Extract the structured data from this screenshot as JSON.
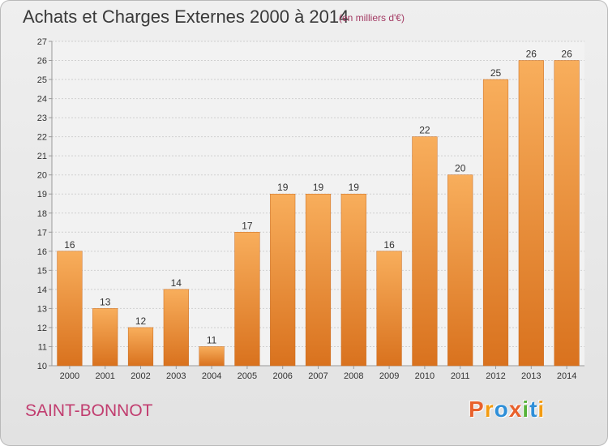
{
  "header": {
    "title": "Achats et Charges Externes 2000 à 2014",
    "subtitle": "(en milliers d'€)"
  },
  "footer": {
    "place": "SAINT-BONNOT",
    "logo": "Proxiti",
    "logo_colors": [
      "#e8612c",
      "#f39c12",
      "#2f8fd8",
      "#e8612c",
      "#57b33a",
      "#2f8fd8",
      "#f39c12"
    ]
  },
  "colors": {
    "bar": "#f0923a",
    "bar_light": "#f8ae5c",
    "bar_dark": "#d9721e",
    "grid": "#cfcfcf",
    "axis": "#9a9a9a",
    "label": "#333333"
  },
  "chart_data": {
    "type": "bar",
    "categories": [
      "2000",
      "2001",
      "2002",
      "2003",
      "2004",
      "2005",
      "2006",
      "2007",
      "2008",
      "2009",
      "2010",
      "2011",
      "2012",
      "2013",
      "2014"
    ],
    "values": [
      16,
      13,
      12,
      14,
      11,
      17,
      19,
      19,
      19,
      16,
      22,
      20,
      25,
      26,
      26
    ],
    "title": "Achats et Charges Externes 2000 à 2014",
    "subtitle": "(en milliers d'€)",
    "ylim": [
      10,
      27
    ],
    "yticks": [
      "10",
      "11",
      "12",
      "13",
      "14",
      "15",
      "16",
      "17",
      "18",
      "19",
      "20",
      "21",
      "22",
      "23",
      "24",
      "25",
      "26",
      "27"
    ],
    "grid": true,
    "data_labels": [
      "16",
      "13",
      "12",
      "14",
      "11",
      "17",
      "19",
      "19",
      "19",
      "16",
      "22",
      "20",
      "25",
      "26",
      "26"
    ]
  }
}
